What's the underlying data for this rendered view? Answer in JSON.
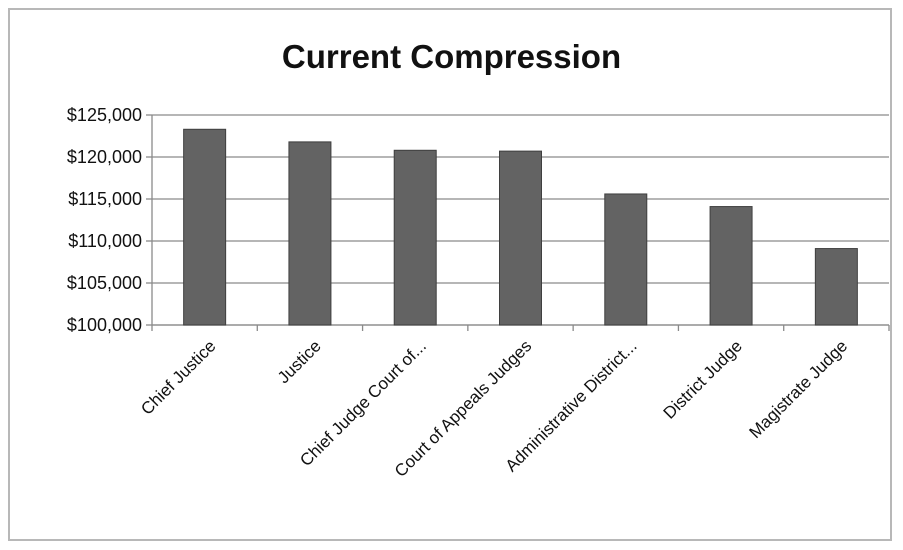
{
  "chart_data": {
    "type": "bar",
    "title": "Current Compression",
    "xlabel": "",
    "ylabel": "",
    "categories": [
      "Chief Justice",
      "Justice",
      "Chief Judge Court of...",
      "Court of Appeals Judges",
      "Administrative District...",
      "District Judge",
      "Magistrate Judge"
    ],
    "values": [
      123300,
      121800,
      120800,
      120700,
      115600,
      114100,
      109100
    ],
    "ylim": [
      100000,
      125000
    ],
    "yticks": [
      100000,
      105000,
      110000,
      115000,
      120000,
      125000
    ],
    "ytick_labels": [
      "$100,000",
      "$105,000",
      "$110,000",
      "$115,000",
      "$120,000",
      "$125,000"
    ],
    "grid": true,
    "legend": "none",
    "colors": {
      "bar": "#636363",
      "bar_edge": "#3f3f3f",
      "grid": "#8a8a8a",
      "axis": "#8a8a8a"
    }
  }
}
